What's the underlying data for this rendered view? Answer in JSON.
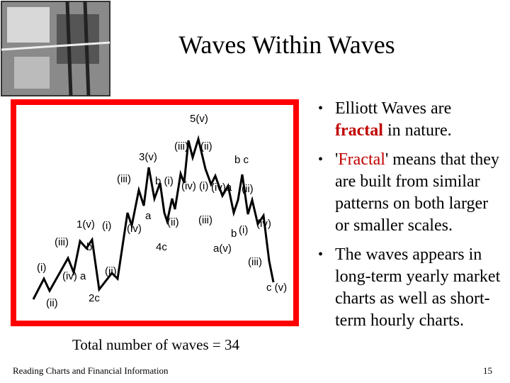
{
  "title": "Waves Within Waves",
  "bullets": [
    [
      "Elliott Waves are",
      "fractal",
      "in nature."
    ],
    [
      "'",
      "Fractal",
      "' means that they are built from similar patterns on both larger or smaller scales."
    ],
    [
      "The waves appears in long-term yearly market charts as well as short-term hourly charts."
    ]
  ],
  "diagram": {
    "labels": [
      "5(v)",
      "(iii)",
      "(ii)",
      "3(v)",
      "b c",
      "(iii)",
      "b (i)",
      "(iv) (i)",
      "(iv)a",
      "(ii)",
      "a",
      "1(v)",
      "(i)",
      "(iv)",
      "(ii)",
      "(iii)",
      "(iv)",
      "b",
      "(i)",
      "(iii)",
      "b",
      "4c",
      "a(v)",
      "(i)",
      "(ii)",
      "(iv) a",
      "(iii)",
      "2c",
      "(ii)",
      "c (v)"
    ],
    "caption": "Total number of waves = 34"
  },
  "footer": "Reading Charts and Financial Information",
  "page_number": "15"
}
